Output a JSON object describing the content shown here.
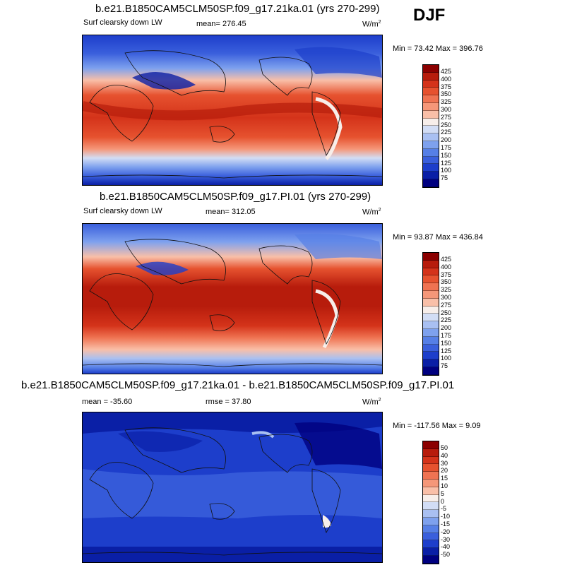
{
  "season": "DJF",
  "panels": [
    {
      "title": "b.e21.B1850CAM5CLM50SP.f09_g17.21ka.01 (yrs 270-299)",
      "left_label": "Surf clearsky down LW",
      "stat_label": "mean= 276.45",
      "units": "W/m",
      "units_sup": "2",
      "minmax": "Min =  73.42 Max = 396.76",
      "levels": [
        "425",
        "400",
        "375",
        "350",
        "325",
        "300",
        "275",
        "250",
        "225",
        "200",
        "175",
        "150",
        "125",
        "100",
        "75"
      ]
    },
    {
      "title": "b.e21.B1850CAM5CLM50SP.f09_g17.PI.01 (yrs 270-299)",
      "left_label": "Surf clearsky down LW",
      "stat_label": "mean= 312.05",
      "units": "W/m",
      "units_sup": "2",
      "minmax": "Min =  93.87 Max = 436.84",
      "levels": [
        "425",
        "400",
        "375",
        "350",
        "325",
        "300",
        "275",
        "250",
        "225",
        "200",
        "175",
        "150",
        "125",
        "100",
        "75"
      ]
    },
    {
      "title": "b.e21.B1850CAM5CLM50SP.f09_g17.21ka.01 - b.e21.B1850CAM5CLM50SP.f09_g17.PI.01",
      "left_label": "mean = -35.60",
      "stat_label": "rmse =  37.80",
      "units": "W/m",
      "units_sup": "2",
      "minmax": "Min = -117.56 Max =   9.09",
      "levels": [
        "50",
        "40",
        "30",
        "20",
        "15",
        "10",
        "5",
        "0",
        "-5",
        "-10",
        "-15",
        "-20",
        "-30",
        "-40",
        "-50"
      ]
    }
  ],
  "colors": {
    "scale": [
      "#8b0000",
      "#b71c0c",
      "#d4331a",
      "#e6522f",
      "#ef7352",
      "#f59779",
      "#f9bfa8",
      "#f7eeea",
      "#d2ddf5",
      "#a9c0f2",
      "#7ea1ee",
      "#567fe6",
      "#3a5fdc",
      "#1d3ecb",
      "#0a1fa6",
      "#000080"
    ]
  }
}
